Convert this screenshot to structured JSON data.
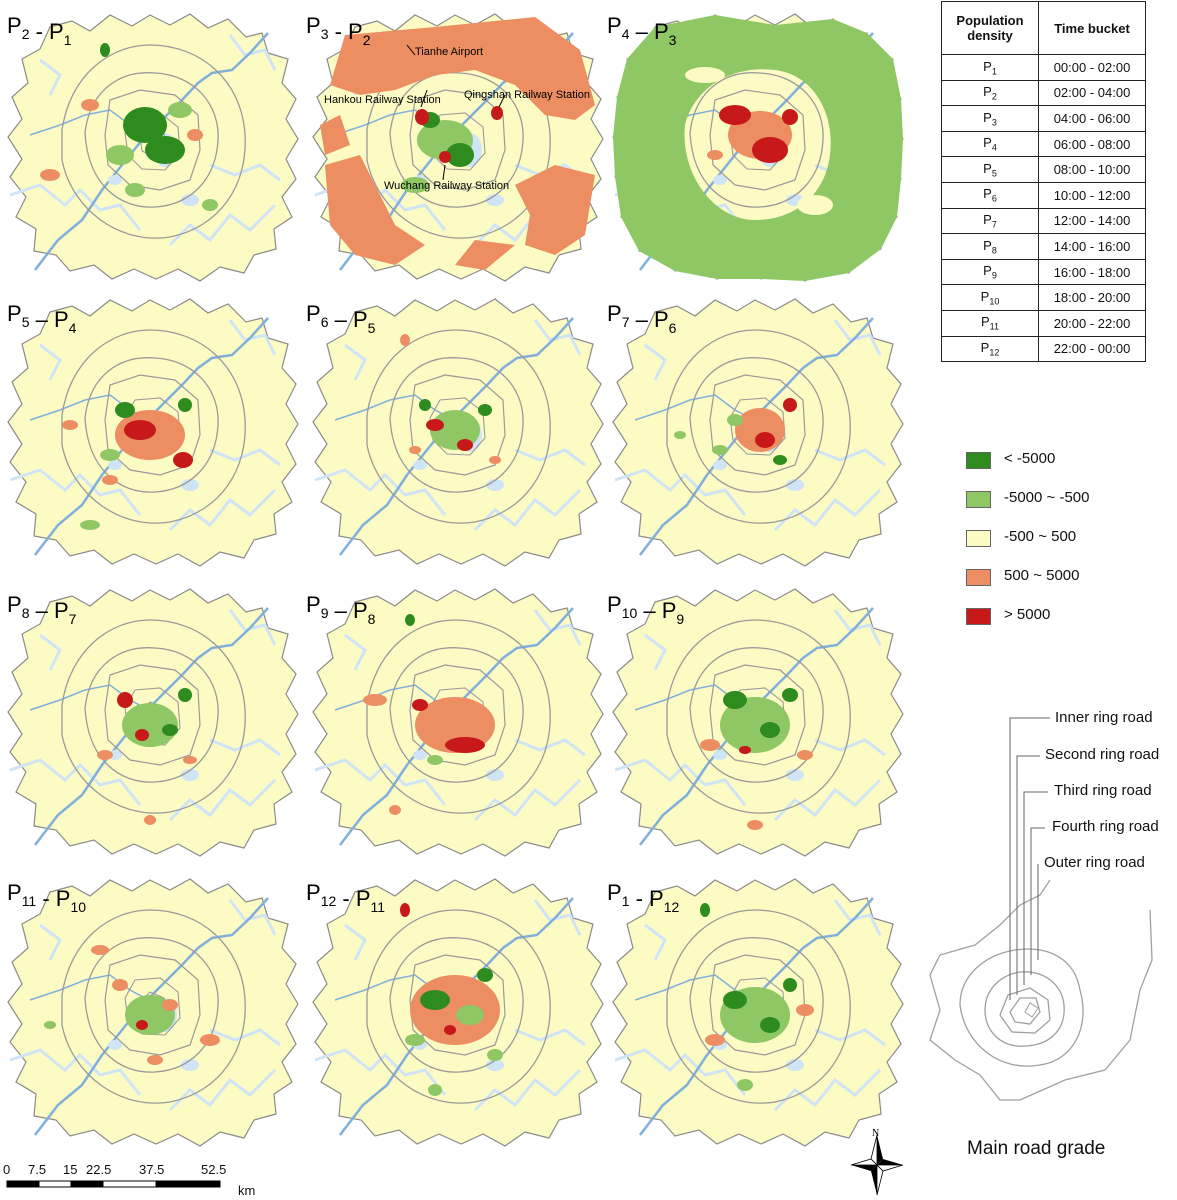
{
  "panels": [
    {
      "id": "p1",
      "title_parts": [
        [
          "P",
          "2"
        ],
        [
          " - ",
          ""
        ],
        [
          "P",
          "1"
        ]
      ]
    },
    {
      "id": "p2",
      "title_parts": [
        [
          "P",
          "3"
        ],
        [
          " - ",
          ""
        ],
        [
          "P",
          "2"
        ]
      ]
    },
    {
      "id": "p3",
      "title_parts": [
        [
          "P",
          "4"
        ],
        [
          " – ",
          ""
        ],
        [
          "P",
          "3"
        ]
      ]
    },
    {
      "id": "p4",
      "title_parts": [
        [
          "P",
          "5"
        ],
        [
          " – ",
          ""
        ],
        [
          "P",
          "4"
        ]
      ]
    },
    {
      "id": "p5",
      "title_parts": [
        [
          "P",
          "6"
        ],
        [
          " – ",
          ""
        ],
        [
          "P",
          "5"
        ]
      ]
    },
    {
      "id": "p6",
      "title_parts": [
        [
          "P",
          "7"
        ],
        [
          " – ",
          ""
        ],
        [
          "P",
          "6"
        ]
      ]
    },
    {
      "id": "p7",
      "title_parts": [
        [
          "P",
          "8"
        ],
        [
          " – ",
          ""
        ],
        [
          "P",
          "7"
        ]
      ]
    },
    {
      "id": "p8",
      "title_parts": [
        [
          "P",
          "9"
        ],
        [
          " – ",
          ""
        ],
        [
          "P",
          "8"
        ]
      ]
    },
    {
      "id": "p9",
      "title_parts": [
        [
          "P",
          "10"
        ],
        [
          " – ",
          ""
        ],
        [
          "P",
          "9"
        ]
      ]
    },
    {
      "id": "p10",
      "title_parts": [
        [
          "P",
          "11"
        ],
        [
          " - ",
          ""
        ],
        [
          "P",
          "10"
        ]
      ]
    },
    {
      "id": "p11",
      "title_parts": [
        [
          "P",
          "12"
        ],
        [
          " - ",
          ""
        ],
        [
          "P",
          "11"
        ]
      ]
    },
    {
      "id": "p12",
      "title_parts": [
        [
          "P",
          "1"
        ],
        [
          " - ",
          ""
        ],
        [
          "P",
          "12"
        ]
      ]
    }
  ],
  "annotations": {
    "tianhe": "Tianhe Airport",
    "hankou": "Hankou Railway Station",
    "qingshan": "Qingshan Railway Station",
    "wuchang": "Wuchang Railway Station"
  },
  "table": {
    "header_col1_line1": "Population",
    "header_col1_line2": "density",
    "header_col2": "Time bucket",
    "rows": [
      {
        "p": "P",
        "sub": "1",
        "t": "00:00 - 02:00"
      },
      {
        "p": "P",
        "sub": "2",
        "t": "02:00 - 04:00"
      },
      {
        "p": "P",
        "sub": "3",
        "t": "04:00 - 06:00"
      },
      {
        "p": "P",
        "sub": "4",
        "t": "06:00 - 08:00"
      },
      {
        "p": "P",
        "sub": "5",
        "t": "08:00 - 10:00"
      },
      {
        "p": "P",
        "sub": "6",
        "t": "10:00 - 12:00"
      },
      {
        "p": "P",
        "sub": "7",
        "t": "12:00 - 14:00"
      },
      {
        "p": "P",
        "sub": "8",
        "t": "14:00 - 16:00"
      },
      {
        "p": "P",
        "sub": "9",
        "t": "16:00 - 18:00"
      },
      {
        "p": "P",
        "sub": "10",
        "t": "18:00 - 20:00"
      },
      {
        "p": "P",
        "sub": "11",
        "t": "20:00 - 22:00"
      },
      {
        "p": "P",
        "sub": "12",
        "t": "22:00 - 00:00"
      }
    ]
  },
  "legend": [
    {
      "label": "< -5000",
      "color": "#2e8b1e"
    },
    {
      "label": "-5000 ~ -500",
      "color": "#8fc765"
    },
    {
      "label": "-500 ~ 500",
      "color": "#fdfbc4"
    },
    {
      "label": "500 ~ 5000",
      "color": "#ec8d62"
    },
    {
      "label": "> 5000",
      "color": "#c71919"
    }
  ],
  "colors": {
    "base": "#fdfbc4",
    "water": "#cfe4f5",
    "river": "#7fb0dc",
    "road": "#9a9a9a",
    "border": "#8a8a8a"
  },
  "roads": {
    "inner": "Inner ring road",
    "second": "Second ring road",
    "third": "Third ring road",
    "fourth": "Fourth ring road",
    "outer": "Outer ring road",
    "caption": "Main road grade"
  },
  "scale": {
    "ticks": [
      "0",
      "7.5",
      "15",
      "22.5",
      "37.5",
      "52.5"
    ],
    "unit": "km"
  },
  "north": "N"
}
